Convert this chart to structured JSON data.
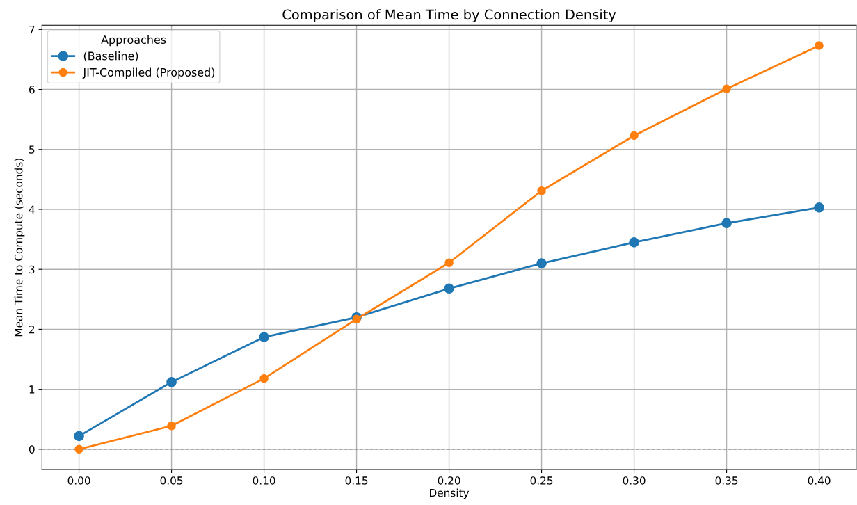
{
  "chart_data": {
    "type": "line",
    "title": "Comparison of Mean Time by Connection Density",
    "xlabel": "Density",
    "ylabel": "Mean Time to Compute (seconds)",
    "legend_title": "Approaches",
    "x": [
      0.0,
      0.05,
      0.1,
      0.15,
      0.2,
      0.25,
      0.3,
      0.35,
      0.4
    ],
    "series": [
      {
        "name": "(Baseline)",
        "color": "#1f77b4",
        "values": [
          0.22,
          1.12,
          1.87,
          2.2,
          2.68,
          3.1,
          3.45,
          3.77,
          4.03
        ]
      },
      {
        "name": "JIT-Compiled (Proposed)",
        "color": "#ff7f0e",
        "values": [
          0.0,
          0.39,
          1.18,
          2.17,
          3.11,
          4.31,
          5.23,
          6.01,
          6.73
        ]
      }
    ],
    "xlim": [
      -0.02,
      0.42
    ],
    "xticks": [
      {
        "value": 0.0,
        "label": "0.00"
      },
      {
        "value": 0.05,
        "label": "0.05"
      },
      {
        "value": 0.1,
        "label": "0.10"
      },
      {
        "value": 0.15,
        "label": "0.15"
      },
      {
        "value": 0.2,
        "label": "0.20"
      },
      {
        "value": 0.25,
        "label": "0.25"
      },
      {
        "value": 0.3,
        "label": "0.30"
      },
      {
        "value": 0.35,
        "label": "0.35"
      },
      {
        "value": 0.4,
        "label": "0.40"
      }
    ],
    "ylim": [
      -0.34,
      7.07
    ],
    "yticks": [
      0,
      1,
      2,
      3,
      4,
      5,
      6,
      7
    ],
    "ref_lines": [
      {
        "axis": "y",
        "value": 0,
        "label": null,
        "color": "#808080",
        "line_style": "dashed"
      }
    ],
    "grid": true,
    "legend": "top left",
    "marker": "circle",
    "line_style": "solid"
  }
}
